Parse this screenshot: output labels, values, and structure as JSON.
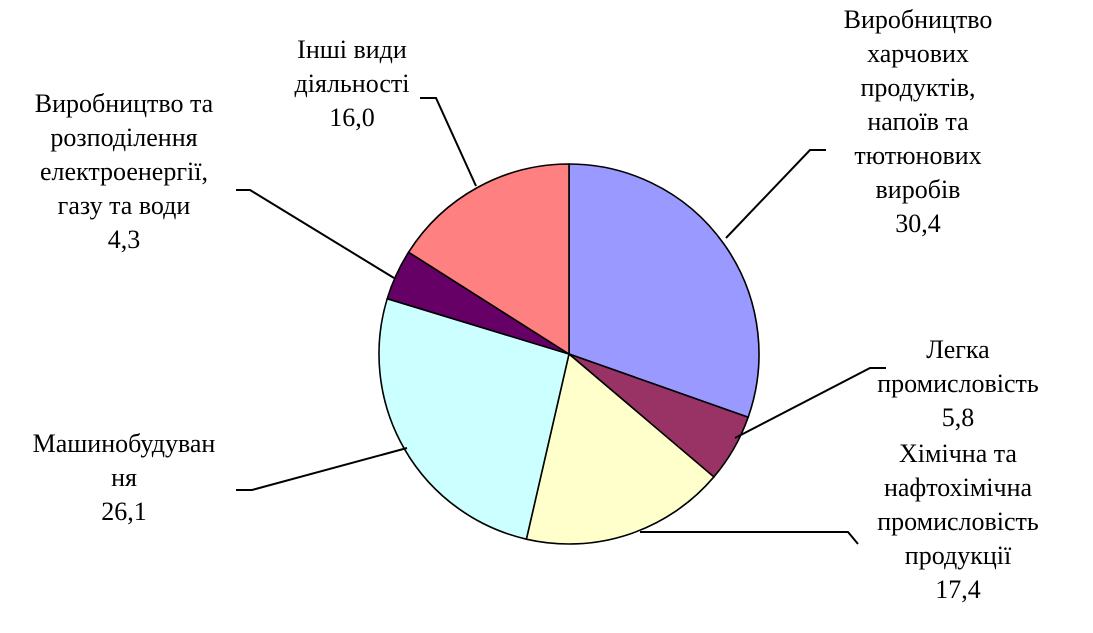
{
  "chart_data": {
    "type": "pie",
    "title": "",
    "slices": [
      {
        "label": "Виробництво харчових продуктів, напоїв та тютюнових виробів",
        "lines": [
          "Виробництво",
          "харчових",
          "продуктів,",
          "напоїв та",
          "тютюнових",
          "виробів"
        ],
        "value": 30.4,
        "value_text": "30,4",
        "color": "#9999FF"
      },
      {
        "label": "Легка промисловість",
        "lines": [
          "Легка",
          "промисловість"
        ],
        "value": 5.8,
        "value_text": "5,8",
        "color": "#993366"
      },
      {
        "label": "Хімічна та нафтохімічна промисловість продукції",
        "lines": [
          "Хімічна та",
          "нафтохімічна",
          "промисловість",
          "продукції"
        ],
        "value": 17.4,
        "value_text": "17,4",
        "color": "#FFFFCC"
      },
      {
        "label": "Машинобудування",
        "lines": [
          "Машинобудуван",
          "ня"
        ],
        "value": 26.1,
        "value_text": "26,1",
        "color": "#CCFFFF"
      },
      {
        "label": "Виробництво та розподілення електроенергії, газу та води",
        "lines": [
          "Виробництво та",
          "розподілення",
          "електроенергії,",
          "газу та води"
        ],
        "value": 4.3,
        "value_text": "4,3",
        "color": "#660066"
      },
      {
        "label": "Інші види діяльності",
        "lines": [
          "Інші види",
          "діяльності"
        ],
        "value": 16.0,
        "value_text": "16,0",
        "color": "#FF8080"
      }
    ]
  }
}
